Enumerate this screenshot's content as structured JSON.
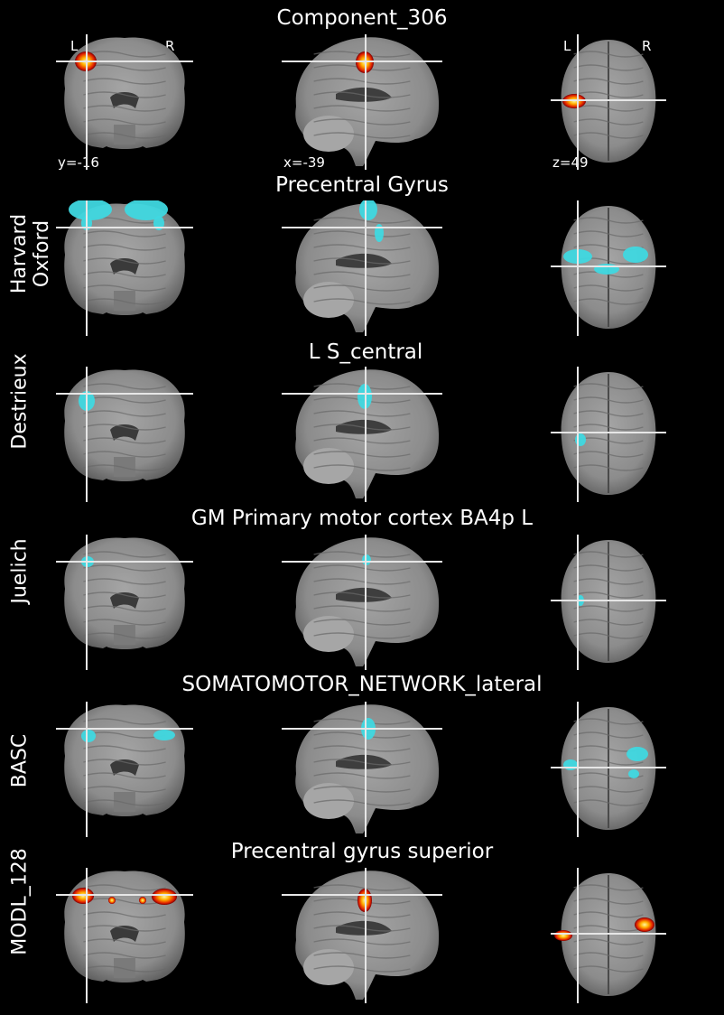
{
  "figure": {
    "top": {
      "title": "Component_306",
      "left_label": "L",
      "right_label": "R",
      "axial_left_label": "L",
      "axial_right_label": "R",
      "coord_y": "y=-16",
      "coord_x": "x=-39",
      "coord_z": "z=49"
    },
    "rows": [
      {
        "atlas": "Harvard\nOxford",
        "title": "Precentral Gyrus"
      },
      {
        "atlas": "Destrieux",
        "title": "L S_central"
      },
      {
        "atlas": "Juelich",
        "title": "GM Primary motor cortex BA4p L"
      },
      {
        "atlas": "BASC",
        "title": "SOMATOMOTOR_NETWORK_lateral"
      },
      {
        "atlas": "MODL_128",
        "title": "Precentral gyrus superior"
      }
    ]
  },
  "colors": {
    "background": "#000000",
    "brain": "#8c8c8c",
    "crosshair": "#e6e6e6",
    "cyan_overlay": "#3fd8e0",
    "hot_overlay": "#ff6a00"
  }
}
